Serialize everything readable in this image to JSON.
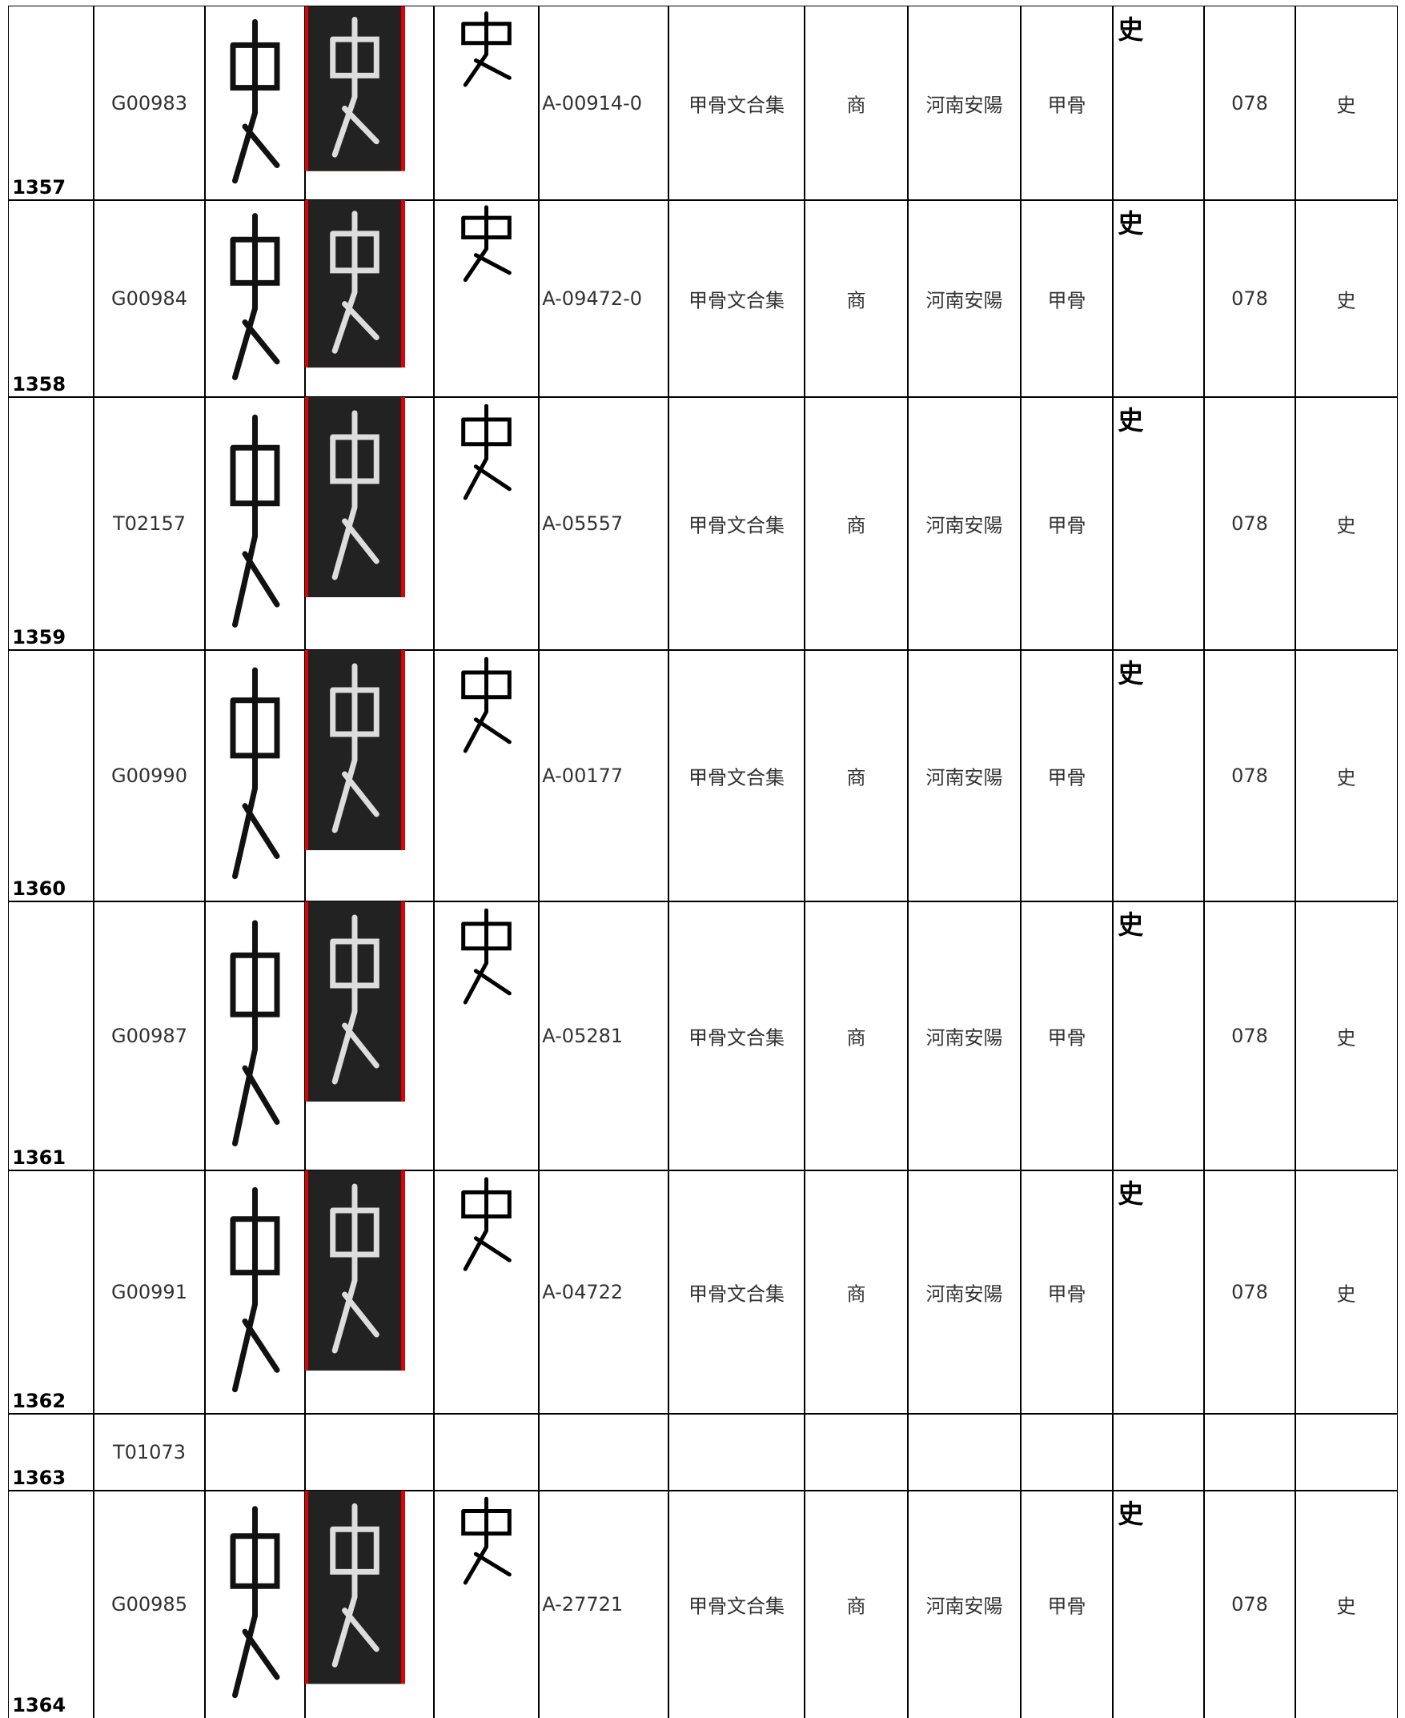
{
  "table": {
    "rows": [
      {
        "id": "1357",
        "code": "G00983",
        "source": "A-00914-0",
        "book": "甲骨文合集",
        "dynasty": "商",
        "place": "河南安陽",
        "material": "甲骨",
        "glyph": "史",
        "number": "078",
        "char": "史"
      },
      {
        "id": "1358",
        "code": "G00984",
        "source": "A-09472-0",
        "book": "甲骨文合集",
        "dynasty": "商",
        "place": "河南安陽",
        "material": "甲骨",
        "glyph": "史",
        "number": "078",
        "char": "史"
      },
      {
        "id": "1359",
        "code": "T02157",
        "source": "A-05557",
        "book": "甲骨文合集",
        "dynasty": "商",
        "place": "河南安陽",
        "material": "甲骨",
        "glyph": "史",
        "number": "078",
        "char": "史"
      },
      {
        "id": "1360",
        "code": "G00990",
        "source": "A-00177",
        "book": "甲骨文合集",
        "dynasty": "商",
        "place": "河南安陽",
        "material": "甲骨",
        "glyph": "史",
        "number": "078",
        "char": "史"
      },
      {
        "id": "1361",
        "code": "G00987",
        "source": "A-05281",
        "book": "甲骨文合集",
        "dynasty": "商",
        "place": "河南安陽",
        "material": "甲骨",
        "glyph": "史",
        "number": "078",
        "char": "史"
      },
      {
        "id": "1362",
        "code": "G00991",
        "source": "A-04722",
        "book": "甲骨文合集",
        "dynasty": "商",
        "place": "河南安陽",
        "material": "甲骨",
        "glyph": "史",
        "number": "078",
        "char": "史"
      },
      {
        "id": "1363",
        "code": "T01073"
      },
      {
        "id": "1364",
        "code": "G00985",
        "source": "A-27721",
        "book": "甲骨文合集",
        "dynasty": "商",
        "place": "河南安陽",
        "material": "甲骨",
        "glyph": "史",
        "number": "078",
        "char": "史"
      }
    ]
  }
}
